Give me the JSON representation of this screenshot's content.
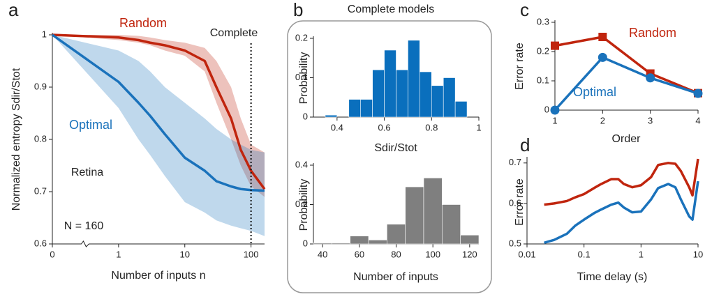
{
  "chart_data": [
    {
      "type": "line",
      "panel_label": "a",
      "xlabel": "Number of inputs n",
      "ylabel": "Normalized entropy Sdir/Stot",
      "xscale": "symlog",
      "axis_break": true,
      "xlim": [
        0,
        160
      ],
      "xticks": [
        0,
        1,
        10,
        100
      ],
      "ylim": [
        0.6,
        1.0
      ],
      "yticks": [
        0.6,
        0.7,
        0.8,
        0.9,
        1
      ],
      "x": [
        0,
        1,
        2,
        3,
        5,
        10,
        20,
        30,
        50,
        70,
        100,
        160
      ],
      "series": [
        {
          "name": "Random",
          "color": "#c0250e",
          "values": [
            1,
            0.995,
            0.99,
            0.985,
            0.98,
            0.97,
            0.95,
            0.9,
            0.84,
            0.78,
            0.74,
            0.705
          ],
          "band_lower": [
            1,
            0.99,
            0.985,
            0.98,
            0.97,
            0.96,
            0.93,
            0.87,
            0.8,
            0.75,
            0.71,
            0.69
          ],
          "band_upper": [
            1,
            1,
            0.998,
            0.995,
            0.99,
            0.985,
            0.975,
            0.95,
            0.9,
            0.84,
            0.79,
            0.775
          ]
        },
        {
          "name": "Optimal",
          "color": "#1a72bb",
          "values": [
            1,
            0.91,
            0.87,
            0.845,
            0.81,
            0.765,
            0.74,
            0.72,
            0.71,
            0.705,
            0.703,
            0.702
          ],
          "band_lower": [
            1,
            0.86,
            0.8,
            0.77,
            0.73,
            0.68,
            0.66,
            0.645,
            0.635,
            0.63,
            0.625,
            0.615
          ],
          "band_upper": [
            1,
            0.97,
            0.95,
            0.93,
            0.9,
            0.87,
            0.84,
            0.82,
            0.8,
            0.79,
            0.78,
            0.775
          ]
        }
      ],
      "vline": 100,
      "vline_label": "Complete",
      "annotations": [
        "Retina",
        "N = 160"
      ]
    },
    {
      "type": "histogram",
      "panel_label": "b",
      "title": "Complete models",
      "xlabel": "Sdir/Stot",
      "ylabel": "Probability",
      "color": "#0a6fbd",
      "xlim": [
        0.3,
        1.0
      ],
      "xticks": [
        0.4,
        0.6,
        0.8,
        1
      ],
      "ylim": [
        0,
        0.2
      ],
      "yticks": [
        0,
        0.1,
        0.2
      ],
      "bins": [
        0.35,
        0.4,
        0.45,
        0.5,
        0.55,
        0.6,
        0.65,
        0.7,
        0.75,
        0.8,
        0.85,
        0.9,
        0.95
      ],
      "values": [
        0.005,
        0,
        0.045,
        0.045,
        0.12,
        0.17,
        0.12,
        0.195,
        0.115,
        0.08,
        0.1,
        0.04
      ]
    },
    {
      "type": "histogram",
      "xlabel": "Number of inputs",
      "ylabel": "Probability",
      "color": "#7f7f7f",
      "xlim": [
        35,
        125
      ],
      "xticks": [
        40,
        60,
        80,
        100,
        120
      ],
      "ylim": [
        0,
        0.4
      ],
      "yticks": [
        0,
        0.2,
        0.4
      ],
      "bins": [
        35,
        45,
        55,
        65,
        75,
        85,
        95,
        105,
        115,
        125
      ],
      "values": [
        0.005,
        0.005,
        0.04,
        0.02,
        0.1,
        0.29,
        0.335,
        0.2,
        0.045
      ]
    },
    {
      "type": "line",
      "panel_label": "c",
      "xlabel": "Order",
      "ylabel": "Error rate",
      "xlim": [
        1,
        4
      ],
      "xticks": [
        1,
        2,
        3,
        4
      ],
      "ylim": [
        0,
        0.3
      ],
      "yticks": [
        0,
        0.1,
        0.2,
        0.3
      ],
      "x": [
        1,
        2,
        3,
        4
      ],
      "series": [
        {
          "name": "Random",
          "color": "#c0250e",
          "marker": "square",
          "values": [
            0.22,
            0.25,
            0.125,
            0.058
          ]
        },
        {
          "name": "Optimal",
          "color": "#1a72bb",
          "marker": "circle",
          "values": [
            0,
            0.18,
            0.11,
            0.057
          ]
        }
      ]
    },
    {
      "type": "line",
      "panel_label": "d",
      "xlabel": "Time delay (s)",
      "ylabel": "Error rate",
      "xscale": "log",
      "xlim": [
        0.01,
        10
      ],
      "xticks": [
        0.01,
        0.1,
        1,
        10
      ],
      "ylim": [
        0.5,
        0.71
      ],
      "yticks": [
        0.5,
        0.6,
        0.7
      ],
      "x": [
        0.02,
        0.03,
        0.05,
        0.07,
        0.1,
        0.15,
        0.2,
        0.3,
        0.4,
        0.5,
        0.7,
        1,
        1.5,
        2,
        3,
        4,
        5,
        7,
        8,
        10
      ],
      "series": [
        {
          "color": "#c0250e",
          "values": [
            0.597,
            0.6,
            0.606,
            0.615,
            0.623,
            0.638,
            0.648,
            0.66,
            0.66,
            0.648,
            0.64,
            0.645,
            0.665,
            0.695,
            0.7,
            0.698,
            0.68,
            0.64,
            0.62,
            0.71
          ]
        },
        {
          "color": "#1a72bb",
          "values": [
            0.503,
            0.51,
            0.525,
            0.545,
            0.56,
            0.576,
            0.585,
            0.597,
            0.602,
            0.59,
            0.578,
            0.58,
            0.61,
            0.638,
            0.648,
            0.64,
            0.61,
            0.568,
            0.56,
            0.655
          ]
        }
      ]
    }
  ]
}
